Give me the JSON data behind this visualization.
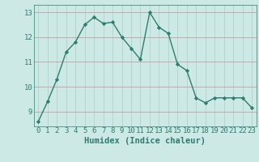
{
  "x": [
    0,
    1,
    2,
    3,
    4,
    5,
    6,
    7,
    8,
    9,
    10,
    11,
    12,
    13,
    14,
    15,
    16,
    17,
    18,
    19,
    20,
    21,
    22,
    23
  ],
  "y": [
    8.6,
    9.4,
    10.3,
    11.4,
    11.8,
    12.5,
    12.8,
    12.55,
    12.6,
    12.0,
    11.55,
    11.1,
    13.0,
    12.4,
    12.15,
    10.9,
    10.65,
    9.55,
    9.35,
    9.55,
    9.55,
    9.55,
    9.55,
    9.15
  ],
  "line_color": "#2e7d6e",
  "marker": "D",
  "marker_size": 2.2,
  "line_width": 1.0,
  "bg_color": "#cce9e5",
  "grid_color_h": "#c4a8a8",
  "grid_color_v": "#b8d4d0",
  "xlabel": "Humidex (Indice chaleur)",
  "xlabel_fontsize": 7.5,
  "xlabel_color": "#2e7d6e",
  "ylim": [
    8.4,
    13.3
  ],
  "xlim": [
    -0.5,
    23.5
  ],
  "yticks": [
    9,
    10,
    11,
    12,
    13
  ],
  "xticks": [
    0,
    1,
    2,
    3,
    4,
    5,
    6,
    7,
    8,
    9,
    10,
    11,
    12,
    13,
    14,
    15,
    16,
    17,
    18,
    19,
    20,
    21,
    22,
    23
  ],
  "tick_fontsize": 6.5,
  "tick_color": "#2e7d6e"
}
